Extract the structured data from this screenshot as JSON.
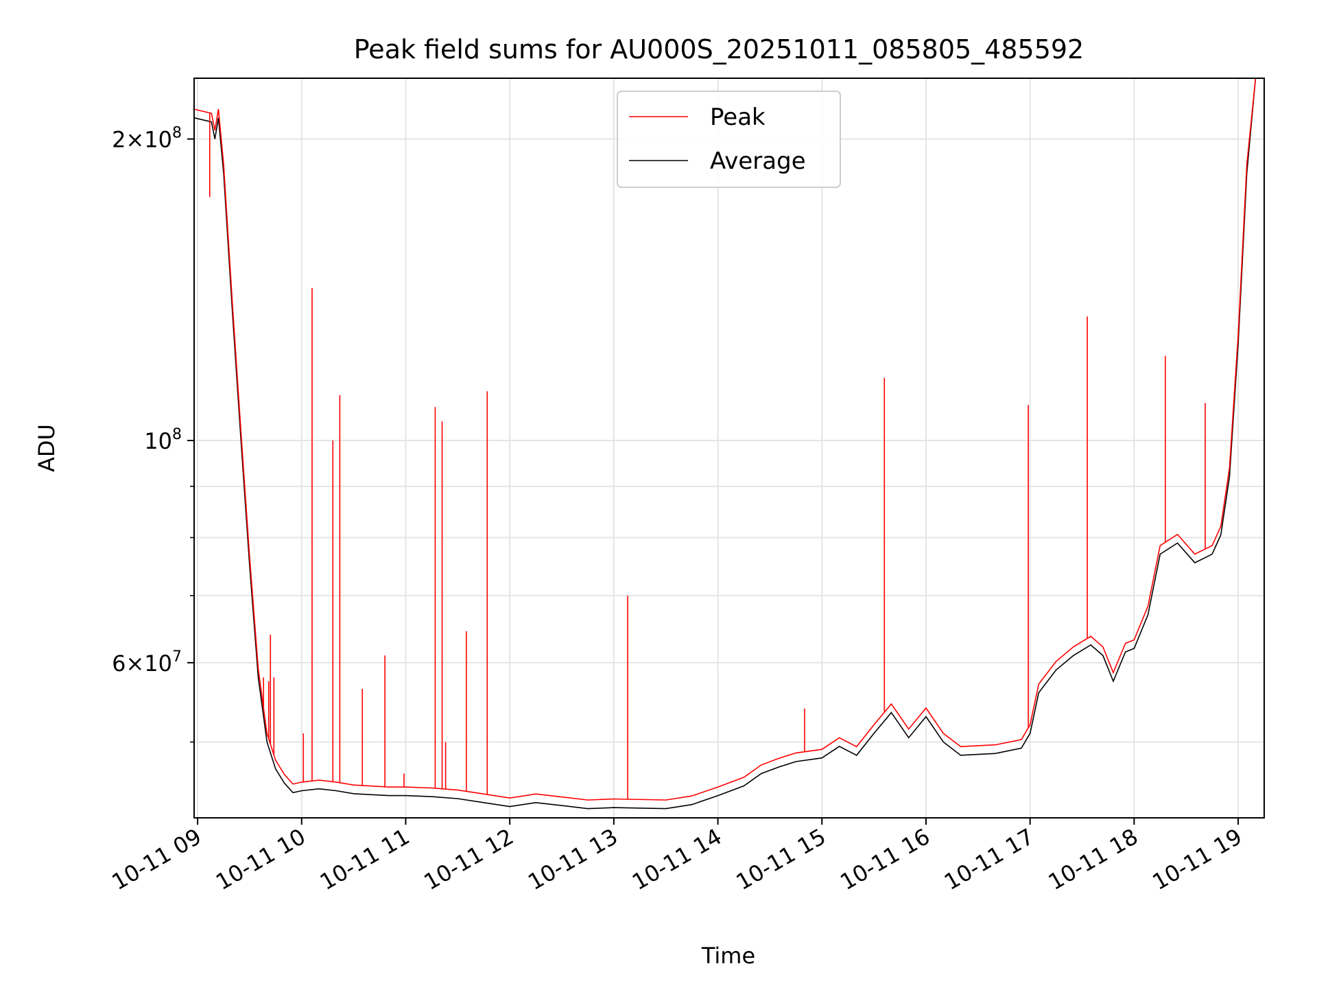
{
  "chart_data": {
    "type": "line",
    "title": "Peak field sums for AU000S_20251011_085805_485592",
    "xlabel": "Time",
    "ylabel": "ADU",
    "yscale": "log",
    "xlim": [
      "2025-10-11 08:58",
      "2025-10-11 19:15"
    ],
    "ylim": [
      42000000,
      230000000
    ],
    "grid": true,
    "legend_position": "top-center",
    "x_ticks": [
      {
        "t": "2025-10-11 09:00",
        "label": "10-11 09"
      },
      {
        "t": "2025-10-11 10:00",
        "label": "10-11 10"
      },
      {
        "t": "2025-10-11 11:00",
        "label": "10-11 11"
      },
      {
        "t": "2025-10-11 12:00",
        "label": "10-11 12"
      },
      {
        "t": "2025-10-11 13:00",
        "label": "10-11 13"
      },
      {
        "t": "2025-10-11 14:00",
        "label": "10-11 14"
      },
      {
        "t": "2025-10-11 15:00",
        "label": "10-11 15"
      },
      {
        "t": "2025-10-11 16:00",
        "label": "10-11 16"
      },
      {
        "t": "2025-10-11 17:00",
        "label": "10-11 17"
      },
      {
        "t": "2025-10-11 18:00",
        "label": "10-11 18"
      },
      {
        "t": "2025-10-11 19:00",
        "label": "10-11 19"
      }
    ],
    "y_ticks_major": [
      {
        "v": 60000000,
        "label_mantissa": "6",
        "label_exp": "7"
      },
      {
        "v": 100000000,
        "label_mantissa": "",
        "label_exp": "8"
      },
      {
        "v": 200000000,
        "label_mantissa": "2",
        "label_exp": "8"
      }
    ],
    "y_ticks_minor": [
      50000000,
      70000000,
      80000000,
      90000000
    ],
    "series": [
      {
        "name": "Average",
        "color": "#000000",
        "points": [
          [
            "2025-10-11 08:58",
            210000000
          ],
          [
            "2025-10-11 09:08",
            208000000
          ],
          [
            "2025-10-11 09:10",
            200000000
          ],
          [
            "2025-10-11 09:12",
            210000000
          ],
          [
            "2025-10-11 09:15",
            185000000
          ],
          [
            "2025-10-11 09:20",
            135000000
          ],
          [
            "2025-10-11 09:25",
            100000000
          ],
          [
            "2025-10-11 09:30",
            75000000
          ],
          [
            "2025-10-11 09:35",
            58000000
          ],
          [
            "2025-10-11 09:40",
            50000000
          ],
          [
            "2025-10-11 09:45",
            47000000
          ],
          [
            "2025-10-11 09:50",
            45500000
          ],
          [
            "2025-10-11 09:55",
            44500000
          ],
          [
            "2025-10-11 10:00",
            44700000
          ],
          [
            "2025-10-11 10:10",
            44900000
          ],
          [
            "2025-10-11 10:20",
            44700000
          ],
          [
            "2025-10-11 10:30",
            44400000
          ],
          [
            "2025-10-11 10:40",
            44300000
          ],
          [
            "2025-10-11 10:50",
            44200000
          ],
          [
            "2025-10-11 11:00",
            44200000
          ],
          [
            "2025-10-11 11:15",
            44100000
          ],
          [
            "2025-10-11 11:30",
            43900000
          ],
          [
            "2025-10-11 11:45",
            43500000
          ],
          [
            "2025-10-11 12:00",
            43100000
          ],
          [
            "2025-10-11 12:15",
            43500000
          ],
          [
            "2025-10-11 12:30",
            43200000
          ],
          [
            "2025-10-11 12:45",
            42900000
          ],
          [
            "2025-10-11 13:00",
            43000000
          ],
          [
            "2025-10-11 13:30",
            42900000
          ],
          [
            "2025-10-11 13:45",
            43300000
          ],
          [
            "2025-10-11 14:00",
            44200000
          ],
          [
            "2025-10-11 14:15",
            45200000
          ],
          [
            "2025-10-11 14:25",
            46500000
          ],
          [
            "2025-10-11 14:35",
            47200000
          ],
          [
            "2025-10-11 14:45",
            47800000
          ],
          [
            "2025-10-11 15:00",
            48200000
          ],
          [
            "2025-10-11 15:10",
            49500000
          ],
          [
            "2025-10-11 15:20",
            48500000
          ],
          [
            "2025-10-11 15:30",
            51000000
          ],
          [
            "2025-10-11 15:40",
            53500000
          ],
          [
            "2025-10-11 15:50",
            50500000
          ],
          [
            "2025-10-11 16:00",
            53000000
          ],
          [
            "2025-10-11 16:10",
            50000000
          ],
          [
            "2025-10-11 16:20",
            48500000
          ],
          [
            "2025-10-11 16:40",
            48700000
          ],
          [
            "2025-10-11 16:55",
            49300000
          ],
          [
            "2025-10-11 17:00",
            51000000
          ],
          [
            "2025-10-11 17:05",
            56000000
          ],
          [
            "2025-10-11 17:15",
            59000000
          ],
          [
            "2025-10-11 17:25",
            61000000
          ],
          [
            "2025-10-11 17:35",
            62500000
          ],
          [
            "2025-10-11 17:42",
            61000000
          ],
          [
            "2025-10-11 17:48",
            57500000
          ],
          [
            "2025-10-11 17:55",
            61500000
          ],
          [
            "2025-10-11 18:00",
            62000000
          ],
          [
            "2025-10-11 18:08",
            67000000
          ],
          [
            "2025-10-11 18:15",
            77000000
          ],
          [
            "2025-10-11 18:25",
            79000000
          ],
          [
            "2025-10-11 18:35",
            75500000
          ],
          [
            "2025-10-11 18:45",
            77000000
          ],
          [
            "2025-10-11 18:50",
            80500000
          ],
          [
            "2025-10-11 18:55",
            92000000
          ],
          [
            "2025-10-11 19:00",
            125000000
          ],
          [
            "2025-10-11 19:05",
            185000000
          ],
          [
            "2025-10-11 19:10",
            230000000
          ]
        ]
      },
      {
        "name": "Peak",
        "color": "#ff0000",
        "spikes": [
          [
            "2025-10-11 09:07",
            175000000
          ],
          [
            "2025-10-11 09:38",
            58000000
          ],
          [
            "2025-10-11 09:41",
            57500000
          ],
          [
            "2025-10-11 09:42",
            64000000
          ],
          [
            "2025-10-11 09:44",
            58000000
          ],
          [
            "2025-10-11 10:01",
            51000000
          ],
          [
            "2025-10-11 10:06",
            142000000
          ],
          [
            "2025-10-11 10:18",
            100000000
          ],
          [
            "2025-10-11 10:22",
            111000000
          ],
          [
            "2025-10-11 10:35",
            56500000
          ],
          [
            "2025-10-11 10:48",
            61000000
          ],
          [
            "2025-10-11 10:59",
            46500000
          ],
          [
            "2025-10-11 11:17",
            108000000
          ],
          [
            "2025-10-11 11:21",
            104500000
          ],
          [
            "2025-10-11 11:23",
            50000000
          ],
          [
            "2025-10-11 11:35",
            64500000
          ],
          [
            "2025-10-11 11:47",
            112000000
          ],
          [
            "2025-10-11 13:08",
            70000000
          ],
          [
            "2025-10-11 14:50",
            54000000
          ],
          [
            "2025-10-11 15:36",
            115500000
          ],
          [
            "2025-10-11 16:59",
            108500000
          ],
          [
            "2025-10-11 17:33",
            133000000
          ],
          [
            "2025-10-11 18:18",
            121500000
          ],
          [
            "2025-10-11 18:41",
            109000000
          ]
        ]
      }
    ]
  }
}
